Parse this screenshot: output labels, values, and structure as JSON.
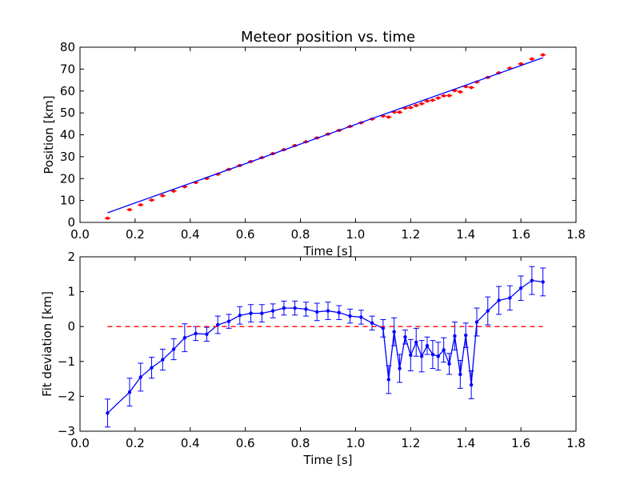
{
  "chart_data": [
    {
      "type": "scatter",
      "title": "Meteor position vs. time",
      "xlabel": "Time [s]",
      "ylabel": "Position [km]",
      "xlim": [
        0.0,
        1.8
      ],
      "ylim": [
        0,
        80
      ],
      "xticks": [
        "0.0",
        "0.2",
        "0.4",
        "0.6",
        "0.8",
        "1.0",
        "1.2",
        "1.4",
        "1.6",
        "1.8"
      ],
      "yticks": [
        "0",
        "10",
        "20",
        "30",
        "40",
        "50",
        "60",
        "70",
        "80"
      ],
      "grid": false,
      "series": [
        {
          "style": "points",
          "color": "#ff0000",
          "x": [
            0.1,
            0.18,
            0.22,
            0.26,
            0.3,
            0.34,
            0.38,
            0.42,
            0.46,
            0.5,
            0.54,
            0.58,
            0.62,
            0.66,
            0.7,
            0.74,
            0.78,
            0.82,
            0.86,
            0.9,
            0.94,
            0.98,
            1.02,
            1.06,
            1.1,
            1.12,
            1.14,
            1.16,
            1.18,
            1.2,
            1.22,
            1.24,
            1.26,
            1.28,
            1.3,
            1.32,
            1.34,
            1.36,
            1.38,
            1.4,
            1.42,
            1.44,
            1.48,
            1.52,
            1.56,
            1.6,
            1.64,
            1.68
          ],
          "y": [
            1.9,
            5.8,
            8.0,
            10.2,
            12.2,
            14.3,
            16.3,
            18.2,
            20.1,
            22.0,
            24.2,
            26.0,
            27.8,
            29.6,
            31.4,
            33.2,
            35.1,
            36.8,
            38.6,
            40.3,
            42.0,
            43.8,
            45.5,
            47.2,
            48.6,
            48.1,
            50.4,
            50.3,
            52.2,
            52.4,
            53.4,
            54.2,
            55.4,
            55.8,
            56.8,
            57.8,
            57.9,
            60.2,
            59.6,
            62.0,
            61.6,
            64.1,
            66.2,
            68.3,
            70.4,
            72.4,
            74.6,
            76.5
          ]
        },
        {
          "style": "line",
          "color": "#0000ff",
          "x": [
            0.1,
            1.68
          ],
          "y": [
            4.4,
            75.2
          ]
        }
      ]
    },
    {
      "type": "line",
      "title": "",
      "xlabel": "Time [s]",
      "ylabel": "Fit deviation [km]",
      "xlim": [
        0.0,
        1.8
      ],
      "ylim": [
        -3,
        2
      ],
      "xticks": [
        "0.0",
        "0.2",
        "0.4",
        "0.6",
        "0.8",
        "1.0",
        "1.2",
        "1.4",
        "1.6",
        "1.8"
      ],
      "yticks": [
        "−3",
        "−2",
        "−1",
        "0",
        "1",
        "2"
      ],
      "grid": false,
      "series": [
        {
          "style": "line-markers-errorbars",
          "color": "#0000ff",
          "x": [
            0.1,
            0.18,
            0.22,
            0.26,
            0.3,
            0.34,
            0.38,
            0.42,
            0.46,
            0.5,
            0.54,
            0.58,
            0.62,
            0.66,
            0.7,
            0.74,
            0.78,
            0.82,
            0.86,
            0.9,
            0.94,
            0.98,
            1.02,
            1.06,
            1.1,
            1.12,
            1.14,
            1.16,
            1.18,
            1.2,
            1.22,
            1.24,
            1.26,
            1.28,
            1.3,
            1.32,
            1.34,
            1.36,
            1.38,
            1.4,
            1.42,
            1.44,
            1.48,
            1.52,
            1.56,
            1.6,
            1.64,
            1.68
          ],
          "y": [
            -2.48,
            -1.88,
            -1.45,
            -1.18,
            -0.95,
            -0.65,
            -0.32,
            -0.2,
            -0.22,
            0.05,
            0.15,
            0.32,
            0.38,
            0.38,
            0.45,
            0.53,
            0.53,
            0.5,
            0.42,
            0.45,
            0.4,
            0.3,
            0.27,
            0.1,
            -0.05,
            -1.52,
            -0.15,
            -1.2,
            -0.3,
            -0.82,
            -0.45,
            -0.85,
            -0.55,
            -0.8,
            -0.85,
            -0.67,
            -1.07,
            -0.27,
            -1.37,
            -0.25,
            -1.67,
            0.13,
            0.45,
            0.75,
            0.82,
            1.1,
            1.32,
            1.28
          ],
          "err": [
            0.4,
            0.4,
            0.4,
            0.3,
            0.3,
            0.3,
            0.4,
            0.2,
            0.2,
            0.25,
            0.2,
            0.25,
            0.25,
            0.25,
            0.2,
            0.2,
            0.2,
            0.2,
            0.25,
            0.25,
            0.2,
            0.2,
            0.2,
            0.2,
            0.25,
            0.4,
            0.4,
            0.4,
            0.2,
            0.45,
            0.4,
            0.45,
            0.25,
            0.4,
            0.4,
            0.35,
            0.3,
            0.4,
            0.4,
            0.35,
            0.4,
            0.4,
            0.4,
            0.4,
            0.35,
            0.35,
            0.4,
            0.4
          ]
        },
        {
          "style": "dashed",
          "color": "#ff0000",
          "x": [
            0.1,
            1.68
          ],
          "y": [
            0,
            0
          ]
        }
      ]
    }
  ]
}
